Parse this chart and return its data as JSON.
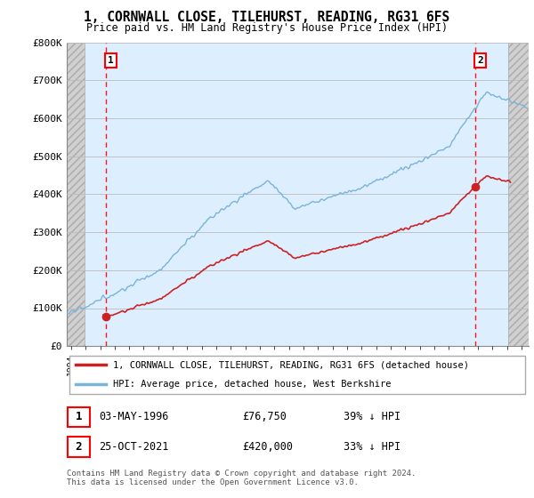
{
  "title": "1, CORNWALL CLOSE, TILEHURST, READING, RG31 6FS",
  "subtitle": "Price paid vs. HM Land Registry's House Price Index (HPI)",
  "sale1_date": "03-MAY-1996",
  "sale1_price": 76750,
  "sale2_date": "25-OCT-2021",
  "sale2_price": 420000,
  "legend_line1": "1, CORNWALL CLOSE, TILEHURST, READING, RG31 6FS (detached house)",
  "legend_line2": "HPI: Average price, detached house, West Berkshire",
  "footnote": "Contains HM Land Registry data © Crown copyright and database right 2024.\nThis data is licensed under the Open Government Licence v3.0.",
  "ylabel_ticks": [
    "£0",
    "£100K",
    "£200K",
    "£300K",
    "£400K",
    "£500K",
    "£600K",
    "£700K",
    "£800K"
  ],
  "ylim": [
    0,
    800000
  ],
  "xlim_start": 1993.7,
  "xlim_end": 2025.5,
  "hpi_color": "#7ab4d8",
  "price_color": "#cc2222",
  "plot_bg_color": "#ddeeff",
  "hatch_bg_color": "#c8c8c8",
  "grid_color": "#bbbbbb",
  "sale1_x": 1996.37,
  "sale2_x": 2021.81,
  "hatch_left_end": 1994.92,
  "hatch_right_start": 2024.08,
  "ann1_date": "03-MAY-1996",
  "ann1_price": "£76,750",
  "ann1_hpi": "39% ↓ HPI",
  "ann2_date": "25-OCT-2021",
  "ann2_price": "£420,000",
  "ann2_hpi": "33% ↓ HPI"
}
